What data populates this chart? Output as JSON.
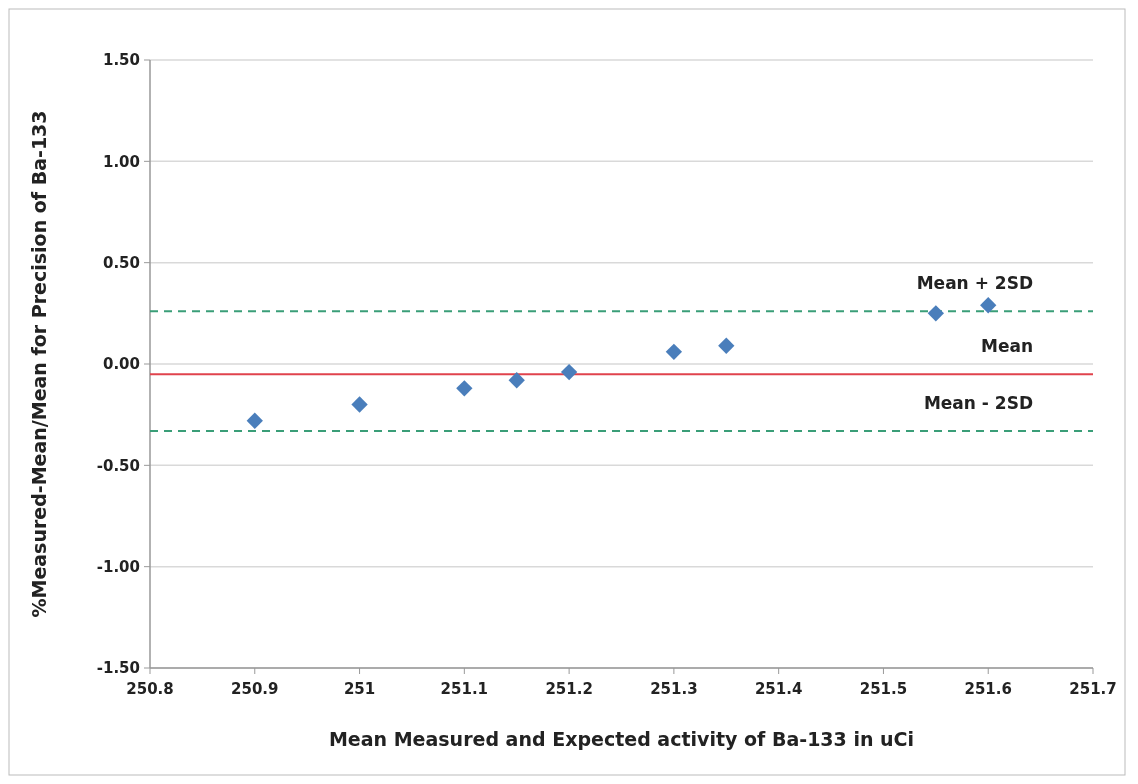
{
  "chart_data": {
    "type": "scatter",
    "xlabel": "Mean Measured and Expected activity of Ba-133 in uCi",
    "ylabel": "%Measured-Mean/Mean for Precision of Ba-133",
    "x": [
      250.9,
      251,
      251.1,
      251.15,
      251.2,
      251.3,
      251.35,
      251.55,
      251.6
    ],
    "series": [
      {
        "color": "#4a7ebb",
        "values": [
          -0.28,
          -0.2,
          -0.12,
          -0.08,
          -0.04,
          0.06,
          0.09,
          0.25,
          0.29
        ]
      }
    ],
    "marker": "diamond",
    "xlim": [
      250.8,
      251.7
    ],
    "xticks": [
      250.8,
      250.9,
      251,
      251.1,
      251.2,
      251.3,
      251.4,
      251.5,
      251.6,
      251.7
    ],
    "ylim": [
      -1.5,
      1.5
    ],
    "yticks": [
      {
        "value": -1.5,
        "label": "-1.50"
      },
      {
        "value": -1,
        "label": "-1.00"
      },
      {
        "value": -0.5,
        "label": "-0.50"
      },
      {
        "value": 0,
        "label": "0.00"
      },
      {
        "value": 0.5,
        "label": "0.50"
      },
      {
        "value": 1,
        "label": "1.00"
      },
      {
        "value": 1.5,
        "label": "1.50"
      }
    ],
    "grid": "y",
    "ref_lines": [
      {
        "axis": "y",
        "value": 0.26,
        "label": "Mean + 2SD",
        "color": "#3a9e78",
        "line_style": "dashed"
      },
      {
        "axis": "y",
        "value": -0.05,
        "label": "Mean",
        "color": "#e0434d",
        "line_style": "solid"
      },
      {
        "axis": "y",
        "value": -0.33,
        "label": "Mean - 2SD",
        "color": "#3a9e78",
        "line_style": "dashed"
      }
    ]
  }
}
